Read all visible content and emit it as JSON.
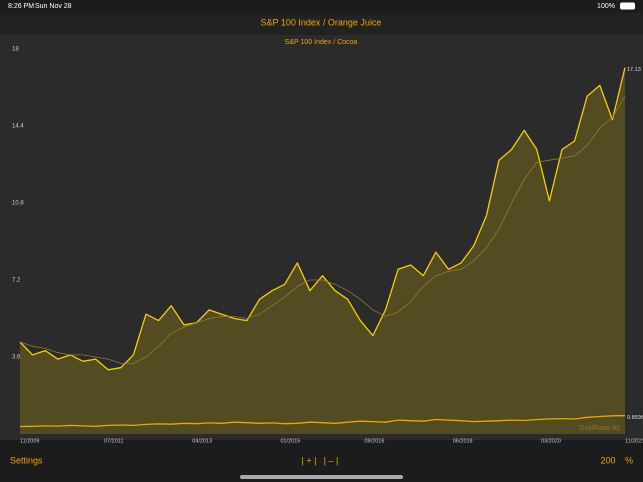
{
  "status_bar": {
    "time": "8:26 PM",
    "date": "Sun Nov 28",
    "battery": "100%"
  },
  "header": {
    "title": "S&P 100 Index / Orange Juice"
  },
  "chart_data": {
    "type": "line",
    "subtitle": "S&P 100 Index / Cocoa",
    "watermark": "GoldRatio #2",
    "x": [
      "11/2009",
      "02/2010",
      "05/2010",
      "08/2010",
      "11/2010",
      "02/2011",
      "05/2011",
      "08/2011",
      "11/2011",
      "02/2012",
      "05/2012",
      "08/2012",
      "11/2012",
      "02/2013",
      "05/2013",
      "08/2013",
      "11/2013",
      "02/2014",
      "05/2014",
      "08/2014",
      "11/2014",
      "02/2015",
      "05/2015",
      "08/2015",
      "11/2015",
      "02/2016",
      "05/2016",
      "08/2016",
      "11/2016",
      "02/2017",
      "05/2017",
      "08/2017",
      "11/2017",
      "02/2018",
      "05/2018",
      "08/2018",
      "11/2018",
      "02/2019",
      "05/2019",
      "08/2019",
      "11/2019",
      "02/2020",
      "05/2020",
      "08/2020",
      "11/2020",
      "02/2021",
      "05/2021",
      "08/2021",
      "11/2021"
    ],
    "xlim": [
      "11/2009",
      "11/2021"
    ],
    "xticks": [
      "11/2009",
      "07/2011",
      "04/2013",
      "01/2015",
      "09/2016",
      "06/2018",
      "03/2020",
      "11/2021"
    ],
    "ylim": [
      0,
      18
    ],
    "yticks": [
      3.6,
      7.2,
      10.8,
      14.4,
      18
    ],
    "grid": false,
    "series": [
      {
        "color": "#f5d000",
        "fill": true,
        "values": [
          4.3,
          3.7,
          3.9,
          3.5,
          3.7,
          3.4,
          3.5,
          3.0,
          3.1,
          3.7,
          5.6,
          5.3,
          6.0,
          5.1,
          5.2,
          5.8,
          5.6,
          5.4,
          5.3,
          6.3,
          6.7,
          7.0,
          8.0,
          6.7,
          7.4,
          6.7,
          6.3,
          5.3,
          4.6,
          5.8,
          7.7,
          7.9,
          7.4,
          8.5,
          7.7,
          8.0,
          8.8,
          10.2,
          12.8,
          13.3,
          14.2,
          13.3,
          10.9,
          13.3,
          13.7,
          15.8,
          16.3,
          14.7,
          17.13
        ]
      },
      {
        "color": "#8c7d2c",
        "fill": false,
        "values": [
          4.3,
          4.1,
          4.0,
          3.8,
          3.7,
          3.7,
          3.6,
          3.5,
          3.3,
          3.3,
          3.6,
          4.1,
          4.7,
          5.0,
          5.2,
          5.4,
          5.5,
          5.5,
          5.4,
          5.6,
          6.0,
          6.4,
          6.9,
          7.2,
          7.2,
          7.0,
          6.7,
          6.3,
          5.8,
          5.5,
          5.7,
          6.2,
          6.9,
          7.4,
          7.6,
          7.7,
          8.1,
          8.7,
          9.6,
          10.8,
          11.9,
          12.7,
          12.8,
          12.9,
          13.0,
          13.5,
          14.3,
          14.8,
          15.8
        ]
      },
      {
        "color": "#e8a800",
        "fill": false,
        "values": [
          0.35,
          0.36,
          0.38,
          0.37,
          0.4,
          0.38,
          0.36,
          0.4,
          0.42,
          0.4,
          0.45,
          0.47,
          0.46,
          0.5,
          0.48,
          0.52,
          0.5,
          0.55,
          0.53,
          0.5,
          0.52,
          0.48,
          0.5,
          0.55,
          0.53,
          0.5,
          0.55,
          0.6,
          0.58,
          0.55,
          0.65,
          0.62,
          0.6,
          0.68,
          0.65,
          0.62,
          0.58,
          0.6,
          0.62,
          0.65,
          0.63,
          0.68,
          0.7,
          0.72,
          0.7,
          0.78,
          0.82,
          0.85,
          0.8596
        ]
      }
    ]
  },
  "toolbar": {
    "settings": "Settings",
    "zoom_in": "| + |",
    "zoom_out": "| – |",
    "amount": "200",
    "unit": "%"
  }
}
